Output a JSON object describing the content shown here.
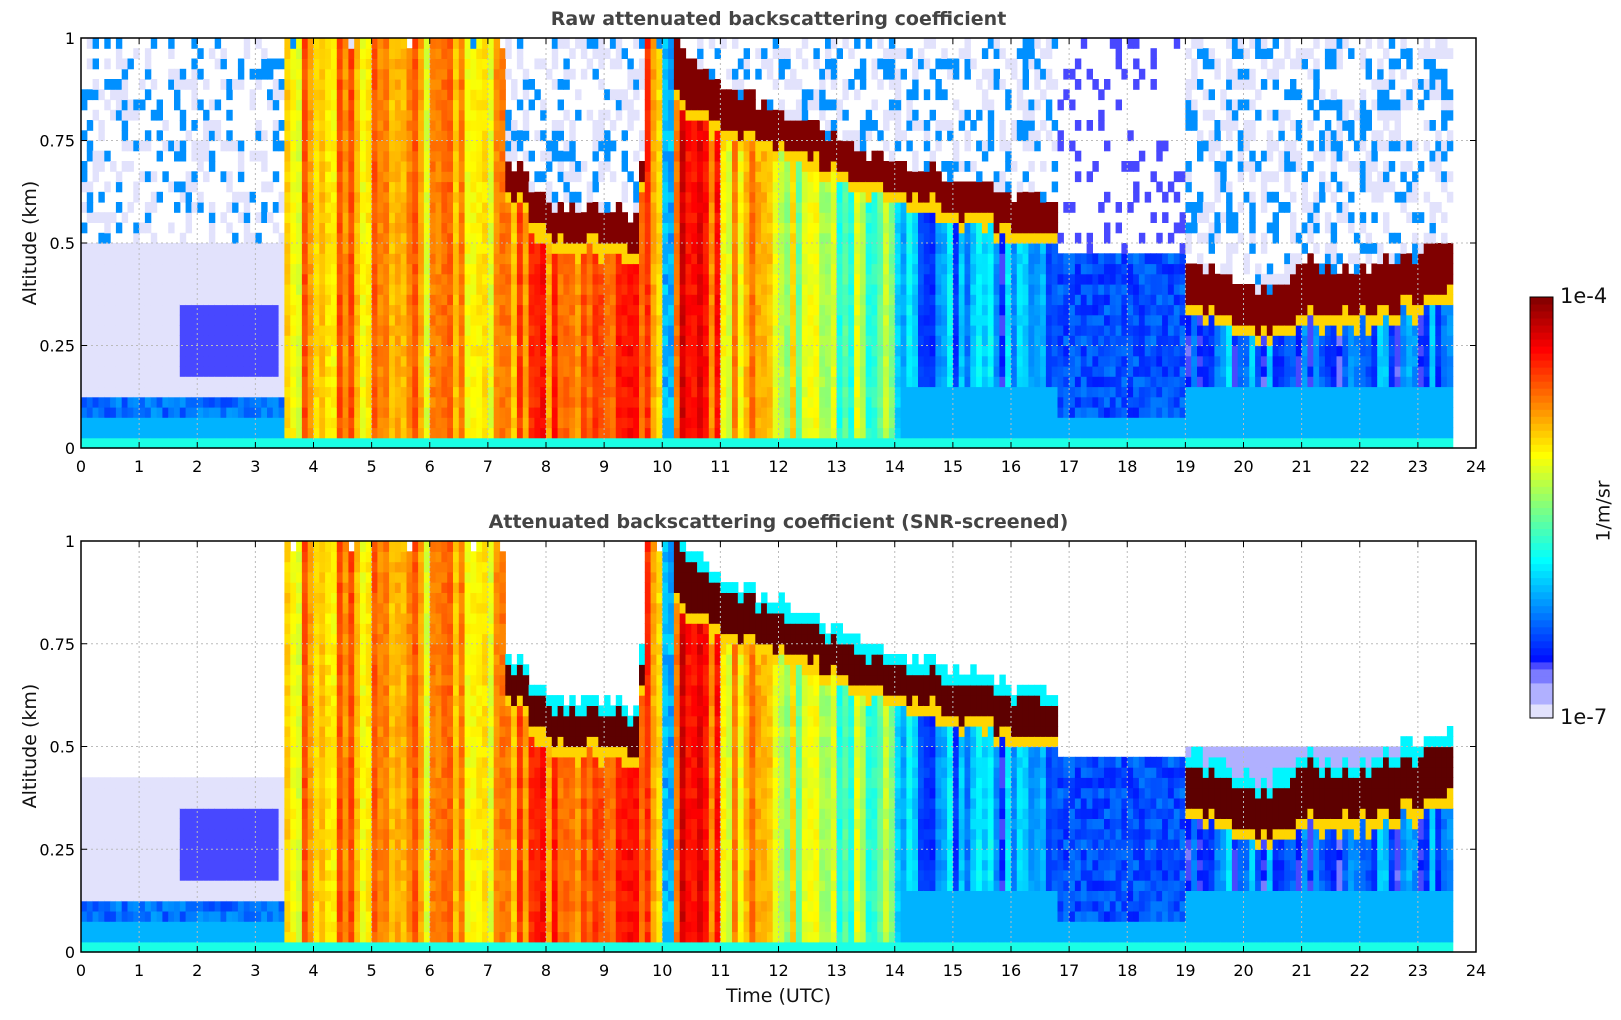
{
  "chart_data": {
    "type": "heatmap",
    "x_unit": "hour (UTC)",
    "y_unit": "km",
    "value_unit": "1/m/sr (log10)",
    "xlim": [
      0,
      24
    ],
    "ylim": [
      0,
      1
    ],
    "xticks": [
      0,
      1,
      2,
      3,
      4,
      5,
      6,
      7,
      8,
      9,
      10,
      11,
      12,
      13,
      14,
      15,
      16,
      17,
      18,
      19,
      20,
      21,
      22,
      23,
      24
    ],
    "yticks": [
      0,
      0.25,
      0.5,
      0.75,
      1
    ],
    "ytick_labels": [
      "0",
      "0.25",
      "0.5",
      "0.75",
      "1"
    ],
    "grid": true,
    "data_end_hour": 23.55,
    "xlabel": "Time (UTC)",
    "colorbar": {
      "label": "1/m/sr",
      "max_label": "1e-4",
      "min_label": "1e-7",
      "log10_range": [
        -7,
        -4
      ],
      "placement": "right"
    },
    "profile_keyframes": [
      {
        "t": 0.0,
        "cloud": false,
        "bl_top_km": 0.12,
        "bl_log10": -6.3
      },
      {
        "t": 3.5,
        "cloud": true,
        "top_km": 1.0,
        "peak_thick_km": 0.0,
        "fill_log10": -4.9
      },
      {
        "t": 7.25,
        "cloud": true,
        "top_km": 1.0,
        "peak_thick_km": 0.0,
        "fill_log10": -4.6
      },
      {
        "t": 7.35,
        "cloud": true,
        "top_km": 0.7,
        "peak_thick_km": 0.06,
        "fill_log10": -4.7
      },
      {
        "t": 8.0,
        "cloud": true,
        "top_km": 0.6,
        "peak_thick_km": 0.08,
        "fill_log10": -4.6
      },
      {
        "t": 9.6,
        "cloud": true,
        "top_km": 0.56,
        "peak_thick_km": 0.08,
        "fill_log10": -4.7
      },
      {
        "t": 9.75,
        "cloud": true,
        "top_km": 1.0,
        "peak_thick_km": 0.0,
        "fill_log10": -4.8
      },
      {
        "t": 10.0,
        "cloud": false,
        "bl_top_km": 1.0,
        "bl_log10": -6.1
      },
      {
        "t": 10.2,
        "cloud": true,
        "top_km": 1.0,
        "peak_thick_km": 0.12,
        "fill_log10": -4.5
      },
      {
        "t": 11.0,
        "cloud": true,
        "top_km": 0.88,
        "peak_thick_km": 0.1,
        "fill_log10": -5.0
      },
      {
        "t": 12.0,
        "cloud": true,
        "top_km": 0.82,
        "peak_thick_km": 0.08,
        "fill_log10": -5.3
      },
      {
        "t": 13.0,
        "cloud": true,
        "top_km": 0.76,
        "peak_thick_km": 0.08,
        "fill_log10": -5.5
      },
      {
        "t": 14.0,
        "cloud": true,
        "top_km": 0.7,
        "peak_thick_km": 0.07,
        "fill_log10": -5.7
      },
      {
        "t": 14.1,
        "cloud": true,
        "top_km": 0.69,
        "peak_thick_km": 0.07,
        "fill_log10": -6.2
      },
      {
        "t": 15.0,
        "cloud": true,
        "top_km": 0.66,
        "peak_thick_km": 0.08,
        "fill_log10": -6.2
      },
      {
        "t": 16.0,
        "cloud": true,
        "top_km": 0.62,
        "peak_thick_km": 0.08,
        "fill_log10": -6.2
      },
      {
        "t": 16.7,
        "cloud": true,
        "top_km": 0.6,
        "peak_thick_km": 0.08,
        "fill_log10": -6.2
      },
      {
        "t": 16.8,
        "cloud": false,
        "bl_top_km": 0.48,
        "bl_log10": -6.4
      },
      {
        "t": 19.0,
        "cloud": true,
        "top_km": 0.46,
        "peak_thick_km": 0.1,
        "fill_log10": -6.3
      },
      {
        "t": 20.3,
        "cloud": true,
        "top_km": 0.38,
        "peak_thick_km": 0.1,
        "fill_log10": -6.3
      },
      {
        "t": 21.0,
        "cloud": true,
        "top_km": 0.45,
        "peak_thick_km": 0.12,
        "fill_log10": -6.3
      },
      {
        "t": 22.0,
        "cloud": true,
        "top_km": 0.43,
        "peak_thick_km": 0.1,
        "fill_log10": -6.3
      },
      {
        "t": 23.0,
        "cloud": true,
        "top_km": 0.48,
        "peak_thick_km": 0.12,
        "fill_log10": -6.3
      },
      {
        "t": 23.55,
        "cloud": true,
        "top_km": 0.52,
        "peak_thick_km": 0.12,
        "fill_log10": -6.3
      }
    ],
    "panels": [
      {
        "title": "Raw attenuated backscattering coefficient",
        "ylabel": "Altitude (km)",
        "screened": false
      },
      {
        "title": "Attenuated backscattering coefficient (SNR-screened)",
        "ylabel": "Altitude (km)",
        "screened": true
      }
    ]
  }
}
